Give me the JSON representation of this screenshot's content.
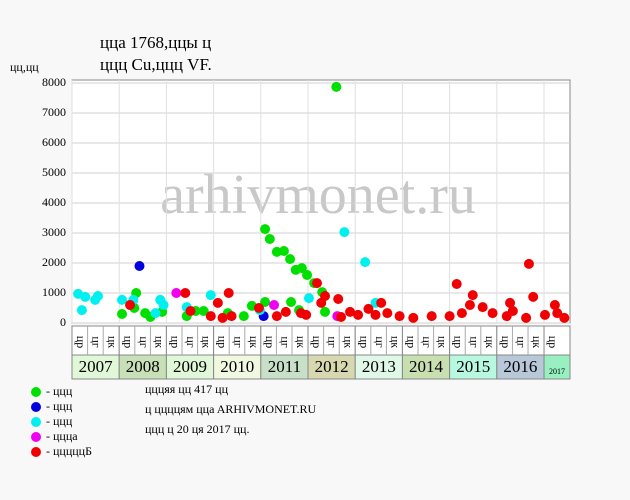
{
  "chart_data": {
    "type": "scatter",
    "title": "ццa 1768,ццы ц",
    "subtitle": "ццц Cu,ццц VF.",
    "y_label": "цц,цц",
    "watermark": "arhivmonet.ru",
    "xlim": [
      2007,
      2017.55
    ],
    "xticks": [
      2007,
      2008,
      2009,
      2010,
      2011,
      2012,
      2013,
      2014,
      2015,
      2016,
      2017
    ],
    "year_colors": [
      "#e0f8d8",
      "#c8e0b8",
      "#e0f8d8",
      "#f0f8e0",
      "#c8e0c8",
      "#d8d8b0",
      "#e0f8e8",
      "#c8e0b0",
      "#b8f8e0",
      "#b8c8d8",
      "#98f0c0"
    ],
    "period_labels": [
      "цр",
      "цг",
      "цк"
    ],
    "ylim": [
      0,
      8000
    ],
    "yticks": [
      0,
      1000,
      2000,
      3000,
      4000,
      5000,
      6000,
      7000,
      8000
    ],
    "grid": true,
    "series": [
      {
        "name": "- ццц",
        "color": "#00e000",
        "x": [
          2008.06,
          2008.36,
          2008.32,
          2008.55,
          2008.66,
          2008.91,
          2009.43,
          2009.62,
          2009.79,
          2010.3,
          2010.64,
          2010.81,
          2011.09,
          2011.09,
          2011.19,
          2011.34,
          2011.49,
          2011.62,
          2011.74,
          2011.87,
          2011.98,
          2012.13,
          2012.3,
          2012.36,
          2012.6,
          2011.64,
          2011.81
        ],
        "values": [
          300,
          1000,
          500,
          330,
          200,
          370,
          230,
          400,
          400,
          330,
          230,
          570,
          700,
          3130,
          2800,
          2370,
          2400,
          2130,
          1770,
          1830,
          1600,
          1330,
          1030,
          370,
          7870,
          700,
          430
        ]
      },
      {
        "name": "- ццц",
        "color": "#0000e0",
        "x": [
          2008.43,
          2011.06
        ],
        "values": [
          1900,
          230
        ]
      },
      {
        "name": "- ццц",
        "color": "#00f0f0",
        "x": [
          2007.13,
          2007.21,
          2007.28,
          2007.49,
          2007.55,
          2008.06,
          2008.3,
          2008.77,
          2008.87,
          2008.94,
          2009.43,
          2009.94,
          2010.98,
          2012.02,
          2012.77,
          2013.21,
          2013.43
        ],
        "values": [
          970,
          430,
          870,
          770,
          900,
          770,
          770,
          330,
          770,
          600,
          530,
          930,
          430,
          830,
          3030,
          2030,
          670
        ]
      },
      {
        "name": "- ццца",
        "color": "#f000f0",
        "x": [
          2009.21,
          2011.28,
          2012.62
        ],
        "values": [
          1000,
          600,
          230
        ]
      },
      {
        "name": "- цццццБ",
        "color": "#f00000",
        "x": [
          2008.23,
          2009.4,
          2009.51,
          2009.94,
          2010.09,
          2010.19,
          2010.32,
          2010.38,
          2010.96,
          2011.34,
          2011.53,
          2011.85,
          2011.96,
          2012.19,
          2012.28,
          2012.36,
          2012.64,
          2012.7,
          2012.89,
          2013.06,
          2013.28,
          2013.43,
          2013.55,
          2013.68,
          2013.94,
          2014.23,
          2014.62,
          2015.0,
          2015.15,
          2015.26,
          2015.43,
          2015.49,
          2015.7,
          2015.91,
          2016.21,
          2016.28,
          2016.34,
          2016.62,
          2016.68,
          2016.77,
          2017.02,
          2017.23,
          2017.28,
          2017.43
        ],
        "values": [
          600,
          1000,
          400,
          230,
          670,
          170,
          1000,
          230,
          500,
          230,
          370,
          330,
          270,
          1330,
          670,
          900,
          800,
          200,
          370,
          270,
          470,
          270,
          670,
          330,
          230,
          170,
          230,
          230,
          1300,
          330,
          600,
          930,
          530,
          330,
          230,
          670,
          400,
          170,
          1970,
          870,
          270,
          600,
          330,
          170
        ]
      }
    ],
    "notes": [
      "цццяя цц 417 цц",
      "ц ццццям ццa ARHIVMONET.RU",
      "ццц ц 20 ця 2017 цц."
    ]
  }
}
